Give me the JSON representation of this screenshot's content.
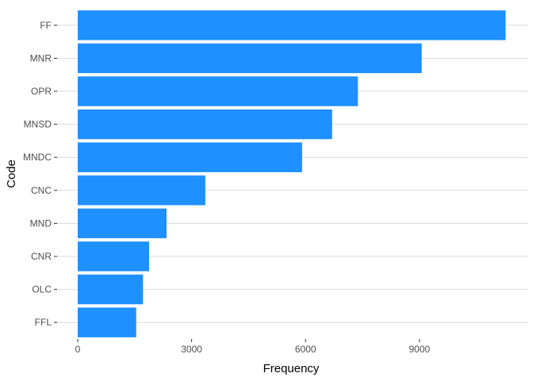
{
  "chart_data": {
    "type": "bar",
    "orientation": "horizontal",
    "categories": [
      "FF",
      "MNR",
      "OPR",
      "MNSD",
      "MNDC",
      "CNC",
      "MND",
      "CNR",
      "OLC",
      "FFL"
    ],
    "values": [
      11270,
      9060,
      7380,
      6700,
      5910,
      3360,
      2340,
      1880,
      1720,
      1540
    ],
    "xlabel": "Frequency",
    "ylabel": "Code",
    "x_ticks": [
      0,
      3000,
      6000,
      9000
    ],
    "xlim": [
      0,
      11270
    ],
    "bar_color": "#1E90FF",
    "gridlines": "horizontal major (category)",
    "legend": "none"
  }
}
